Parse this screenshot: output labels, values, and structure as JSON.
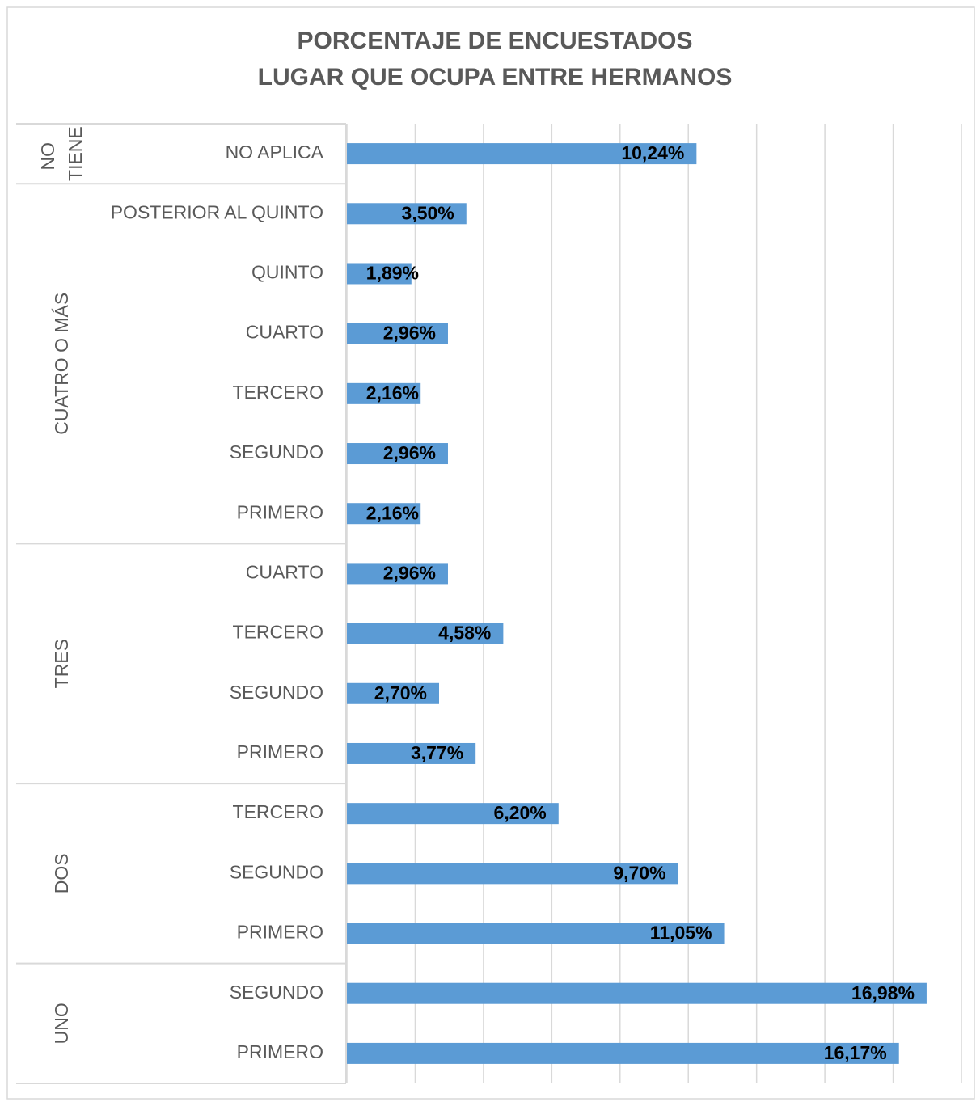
{
  "chart_data": {
    "type": "bar",
    "orientation": "horizontal",
    "title": [
      "PORCENTAJE DE ENCUESTADOS",
      "LUGAR QUE OCUPA ENTRE HERMANOS"
    ],
    "color": "#5b9bd5",
    "grid": true,
    "xlim": [
      0,
      18
    ],
    "xticks": [
      0,
      2,
      4,
      6,
      8,
      10,
      12,
      14,
      16,
      18
    ],
    "groups": [
      {
        "name": "NO TIENE",
        "categories": [
          "NO APLICA"
        ],
        "values": [
          10.24
        ],
        "value_labels": [
          "10,24%"
        ]
      },
      {
        "name": "CUATRO O MÁS",
        "categories": [
          "POSTERIOR AL QUINTO",
          "QUINTO",
          "CUARTO",
          "TERCERO",
          "SEGUNDO",
          "PRIMERO"
        ],
        "values": [
          3.5,
          1.89,
          2.96,
          2.16,
          2.96,
          2.16
        ],
        "value_labels": [
          "3,50%",
          "1,89%",
          "2,96%",
          "2,16%",
          "2,96%",
          "2,16%"
        ]
      },
      {
        "name": "TRES",
        "categories": [
          "CUARTO",
          "TERCERO",
          "SEGUNDO",
          "PRIMERO"
        ],
        "values": [
          2.96,
          4.58,
          2.7,
          3.77
        ],
        "value_labels": [
          "2,96%",
          "4,58%",
          "2,70%",
          "3,77%"
        ]
      },
      {
        "name": "DOS",
        "categories": [
          "TERCERO",
          "SEGUNDO",
          "PRIMERO"
        ],
        "values": [
          6.2,
          9.7,
          11.05
        ],
        "value_labels": [
          "6,20%",
          "9,70%",
          "11,05%"
        ]
      },
      {
        "name": "UNO",
        "categories": [
          "SEGUNDO",
          "PRIMERO"
        ],
        "values": [
          16.98,
          16.17
        ],
        "value_labels": [
          "16,98%",
          "16,17%"
        ]
      }
    ]
  }
}
